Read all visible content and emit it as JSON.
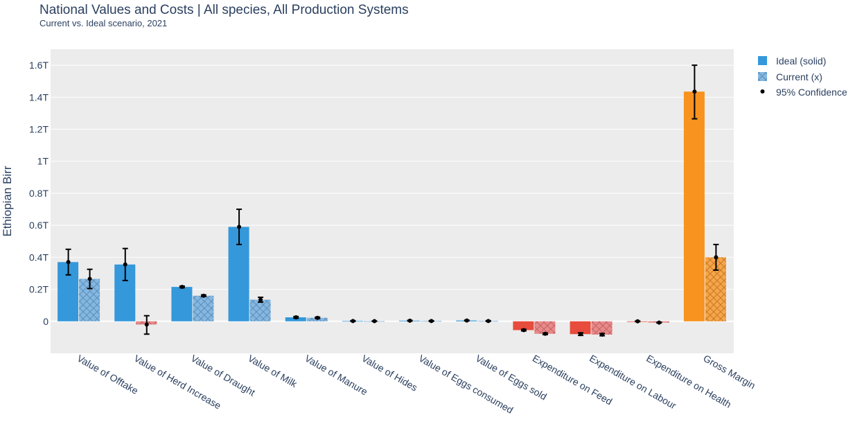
{
  "title": "National Values and Costs | All species, All Production Systems",
  "subtitle": "Current vs. Ideal scenario, 2021",
  "chart_data": {
    "type": "bar",
    "title": "National Values and Costs | All species, All Production Systems",
    "subtitle": "Current vs. Ideal scenario, 2021",
    "xlabel": "",
    "ylabel": "Ethiopian Birr",
    "ylim": [
      -0.2,
      1.7
    ],
    "y_ticks": [
      0,
      0.2,
      0.4,
      0.6,
      0.8,
      1.0,
      1.2,
      1.4,
      1.6
    ],
    "y_tick_labels": [
      "0",
      "0.2T",
      "0.4T",
      "0.6T",
      "0.8T",
      "1T",
      "1.2T",
      "1.4T",
      "1.6T"
    ],
    "categories": [
      "Value of Offtake",
      "Value of Herd Increase",
      "Value of Draught",
      "Value of Milk",
      "Value of Manure",
      "Value of Hides",
      "Value of Eggs consumed",
      "Value of Eggs sold",
      "Expenditure on Feed",
      "Expenditure on Labour",
      "Expenditure on Health",
      "Gross Margin"
    ],
    "series": [
      {
        "name": "Ideal (solid)",
        "pattern": "solid",
        "values": [
          0.37,
          0.355,
          0.215,
          0.59,
          0.025,
          0.002,
          0.004,
          0.005,
          -0.055,
          -0.08,
          0.0,
          1.435
        ],
        "ci_low": [
          0.29,
          0.255,
          0.21,
          0.48,
          0.02,
          0.0,
          0.002,
          0.003,
          -0.06,
          -0.088,
          -0.002,
          1.265
        ],
        "ci_high": [
          0.45,
          0.455,
          0.22,
          0.7,
          0.03,
          0.004,
          0.006,
          0.007,
          -0.05,
          -0.072,
          0.002,
          1.6
        ],
        "colors": [
          "#3498db",
          "#3498db",
          "#3498db",
          "#3498db",
          "#3498db",
          "#3498db",
          "#3498db",
          "#3498db",
          "#e74c3c",
          "#e74c3c",
          "#e74c3c",
          "#f7931e"
        ]
      },
      {
        "name": "Current (x)",
        "pattern": "x",
        "values": [
          0.265,
          -0.02,
          0.16,
          0.135,
          0.022,
          0.001,
          0.002,
          0.002,
          -0.078,
          -0.083,
          -0.008,
          0.4
        ],
        "ci_low": [
          0.205,
          -0.08,
          0.155,
          0.12,
          0.018,
          0.0,
          0.0,
          0.0,
          -0.083,
          -0.09,
          -0.01,
          0.32
        ],
        "ci_high": [
          0.325,
          0.035,
          0.165,
          0.15,
          0.026,
          0.002,
          0.004,
          0.004,
          -0.073,
          -0.076,
          -0.006,
          0.48
        ],
        "colors": [
          "#85b7e0",
          "#e8898a",
          "#85b7e0",
          "#85b7e0",
          "#85b7e0",
          "#85b7e0",
          "#85b7e0",
          "#85b7e0",
          "#e8898a",
          "#e8898a",
          "#e8898a",
          "#f5a54a"
        ]
      }
    ],
    "legend": {
      "placement": "top-right",
      "entries": [
        "Ideal (solid)",
        "Current (x)",
        "95% Confidence"
      ]
    },
    "grid": true,
    "colors": {
      "plot_bg": "#ececec",
      "grid": "#ffffff",
      "positive": "#3498db",
      "negative": "#e74c3c",
      "margin": "#f7931e",
      "error_bar": "#000000"
    }
  }
}
